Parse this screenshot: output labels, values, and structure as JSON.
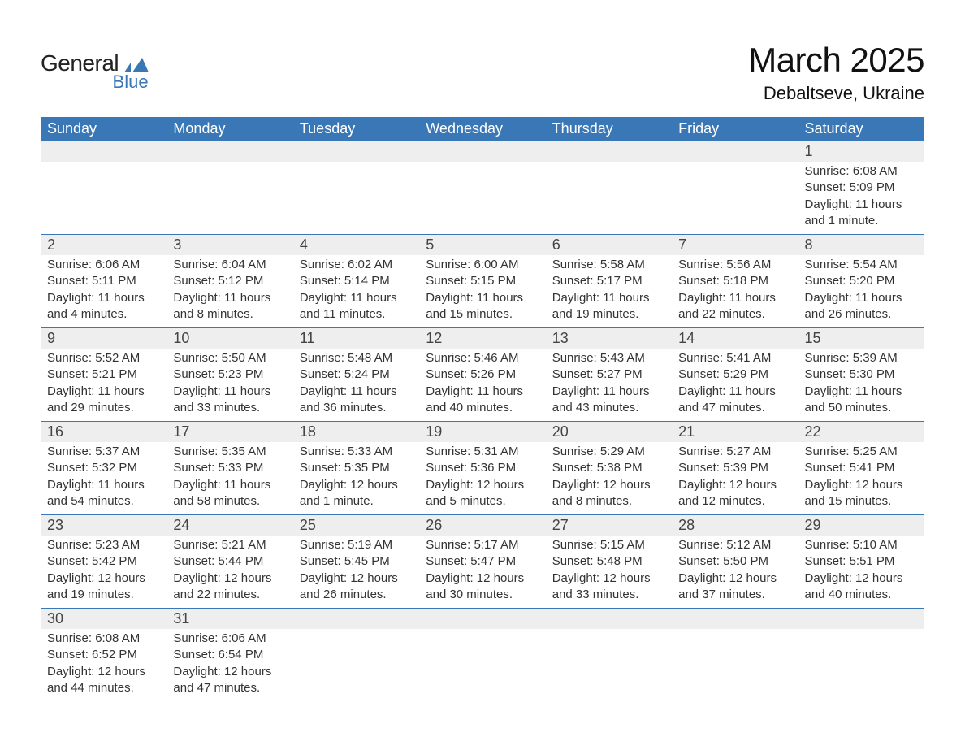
{
  "logo": {
    "line1": "General",
    "line2": "Blue",
    "brand_color": "#3977b6"
  },
  "title": "March 2025",
  "location": "Debaltseve, Ukraine",
  "colors": {
    "header_bg": "#3977b6",
    "header_text": "#ffffff",
    "daynum_bg": "#eeeeee",
    "row_divider": "#3977b6",
    "body_text": "#333333",
    "page_bg": "#ffffff"
  },
  "fonts": {
    "family": "Arial, Helvetica, sans-serif",
    "title_size_pt": 32,
    "location_size_pt": 17,
    "header_size_pt": 14,
    "daynum_size_pt": 14,
    "detail_size_pt": 11
  },
  "layout": {
    "columns": 7,
    "rows": 6,
    "first_day_column_index": 6
  },
  "weekdays": [
    "Sunday",
    "Monday",
    "Tuesday",
    "Wednesday",
    "Thursday",
    "Friday",
    "Saturday"
  ],
  "weeks": [
    [
      null,
      null,
      null,
      null,
      null,
      null,
      {
        "n": "1",
        "sunrise": "Sunrise: 6:08 AM",
        "sunset": "Sunset: 5:09 PM",
        "day1": "Daylight: 11 hours",
        "day2": "and 1 minute."
      }
    ],
    [
      {
        "n": "2",
        "sunrise": "Sunrise: 6:06 AM",
        "sunset": "Sunset: 5:11 PM",
        "day1": "Daylight: 11 hours",
        "day2": "and 4 minutes."
      },
      {
        "n": "3",
        "sunrise": "Sunrise: 6:04 AM",
        "sunset": "Sunset: 5:12 PM",
        "day1": "Daylight: 11 hours",
        "day2": "and 8 minutes."
      },
      {
        "n": "4",
        "sunrise": "Sunrise: 6:02 AM",
        "sunset": "Sunset: 5:14 PM",
        "day1": "Daylight: 11 hours",
        "day2": "and 11 minutes."
      },
      {
        "n": "5",
        "sunrise": "Sunrise: 6:00 AM",
        "sunset": "Sunset: 5:15 PM",
        "day1": "Daylight: 11 hours",
        "day2": "and 15 minutes."
      },
      {
        "n": "6",
        "sunrise": "Sunrise: 5:58 AM",
        "sunset": "Sunset: 5:17 PM",
        "day1": "Daylight: 11 hours",
        "day2": "and 19 minutes."
      },
      {
        "n": "7",
        "sunrise": "Sunrise: 5:56 AM",
        "sunset": "Sunset: 5:18 PM",
        "day1": "Daylight: 11 hours",
        "day2": "and 22 minutes."
      },
      {
        "n": "8",
        "sunrise": "Sunrise: 5:54 AM",
        "sunset": "Sunset: 5:20 PM",
        "day1": "Daylight: 11 hours",
        "day2": "and 26 minutes."
      }
    ],
    [
      {
        "n": "9",
        "sunrise": "Sunrise: 5:52 AM",
        "sunset": "Sunset: 5:21 PM",
        "day1": "Daylight: 11 hours",
        "day2": "and 29 minutes."
      },
      {
        "n": "10",
        "sunrise": "Sunrise: 5:50 AM",
        "sunset": "Sunset: 5:23 PM",
        "day1": "Daylight: 11 hours",
        "day2": "and 33 minutes."
      },
      {
        "n": "11",
        "sunrise": "Sunrise: 5:48 AM",
        "sunset": "Sunset: 5:24 PM",
        "day1": "Daylight: 11 hours",
        "day2": "and 36 minutes."
      },
      {
        "n": "12",
        "sunrise": "Sunrise: 5:46 AM",
        "sunset": "Sunset: 5:26 PM",
        "day1": "Daylight: 11 hours",
        "day2": "and 40 minutes."
      },
      {
        "n": "13",
        "sunrise": "Sunrise: 5:43 AM",
        "sunset": "Sunset: 5:27 PM",
        "day1": "Daylight: 11 hours",
        "day2": "and 43 minutes."
      },
      {
        "n": "14",
        "sunrise": "Sunrise: 5:41 AM",
        "sunset": "Sunset: 5:29 PM",
        "day1": "Daylight: 11 hours",
        "day2": "and 47 minutes."
      },
      {
        "n": "15",
        "sunrise": "Sunrise: 5:39 AM",
        "sunset": "Sunset: 5:30 PM",
        "day1": "Daylight: 11 hours",
        "day2": "and 50 minutes."
      }
    ],
    [
      {
        "n": "16",
        "sunrise": "Sunrise: 5:37 AM",
        "sunset": "Sunset: 5:32 PM",
        "day1": "Daylight: 11 hours",
        "day2": "and 54 minutes."
      },
      {
        "n": "17",
        "sunrise": "Sunrise: 5:35 AM",
        "sunset": "Sunset: 5:33 PM",
        "day1": "Daylight: 11 hours",
        "day2": "and 58 minutes."
      },
      {
        "n": "18",
        "sunrise": "Sunrise: 5:33 AM",
        "sunset": "Sunset: 5:35 PM",
        "day1": "Daylight: 12 hours",
        "day2": "and 1 minute."
      },
      {
        "n": "19",
        "sunrise": "Sunrise: 5:31 AM",
        "sunset": "Sunset: 5:36 PM",
        "day1": "Daylight: 12 hours",
        "day2": "and 5 minutes."
      },
      {
        "n": "20",
        "sunrise": "Sunrise: 5:29 AM",
        "sunset": "Sunset: 5:38 PM",
        "day1": "Daylight: 12 hours",
        "day2": "and 8 minutes."
      },
      {
        "n": "21",
        "sunrise": "Sunrise: 5:27 AM",
        "sunset": "Sunset: 5:39 PM",
        "day1": "Daylight: 12 hours",
        "day2": "and 12 minutes."
      },
      {
        "n": "22",
        "sunrise": "Sunrise: 5:25 AM",
        "sunset": "Sunset: 5:41 PM",
        "day1": "Daylight: 12 hours",
        "day2": "and 15 minutes."
      }
    ],
    [
      {
        "n": "23",
        "sunrise": "Sunrise: 5:23 AM",
        "sunset": "Sunset: 5:42 PM",
        "day1": "Daylight: 12 hours",
        "day2": "and 19 minutes."
      },
      {
        "n": "24",
        "sunrise": "Sunrise: 5:21 AM",
        "sunset": "Sunset: 5:44 PM",
        "day1": "Daylight: 12 hours",
        "day2": "and 22 minutes."
      },
      {
        "n": "25",
        "sunrise": "Sunrise: 5:19 AM",
        "sunset": "Sunset: 5:45 PM",
        "day1": "Daylight: 12 hours",
        "day2": "and 26 minutes."
      },
      {
        "n": "26",
        "sunrise": "Sunrise: 5:17 AM",
        "sunset": "Sunset: 5:47 PM",
        "day1": "Daylight: 12 hours",
        "day2": "and 30 minutes."
      },
      {
        "n": "27",
        "sunrise": "Sunrise: 5:15 AM",
        "sunset": "Sunset: 5:48 PM",
        "day1": "Daylight: 12 hours",
        "day2": "and 33 minutes."
      },
      {
        "n": "28",
        "sunrise": "Sunrise: 5:12 AM",
        "sunset": "Sunset: 5:50 PM",
        "day1": "Daylight: 12 hours",
        "day2": "and 37 minutes."
      },
      {
        "n": "29",
        "sunrise": "Sunrise: 5:10 AM",
        "sunset": "Sunset: 5:51 PM",
        "day1": "Daylight: 12 hours",
        "day2": "and 40 minutes."
      }
    ],
    [
      {
        "n": "30",
        "sunrise": "Sunrise: 6:08 AM",
        "sunset": "Sunset: 6:52 PM",
        "day1": "Daylight: 12 hours",
        "day2": "and 44 minutes."
      },
      {
        "n": "31",
        "sunrise": "Sunrise: 6:06 AM",
        "sunset": "Sunset: 6:54 PM",
        "day1": "Daylight: 12 hours",
        "day2": "and 47 minutes."
      },
      null,
      null,
      null,
      null,
      null
    ]
  ]
}
